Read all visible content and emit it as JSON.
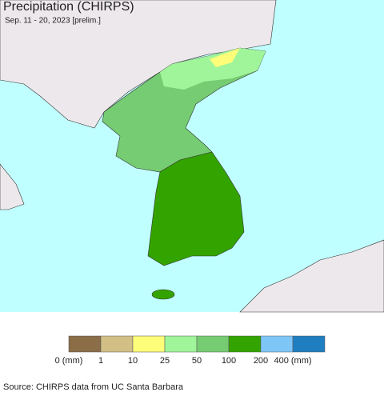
{
  "header": {
    "title": "Precipitation (CHIRPS)",
    "subtitle": "Sep. 11 - 20, 2023 [prelim.]"
  },
  "legend": {
    "colors": [
      "#8b6d48",
      "#d2bf86",
      "#fdfd7a",
      "#a0f59a",
      "#76cc72",
      "#33a300",
      "#7fc6f8",
      "#1e7ec0"
    ],
    "labels": [
      "0 (mm)",
      "1",
      "10",
      "25",
      "50",
      "100",
      "200",
      "400 (mm)"
    ]
  },
  "footer": {
    "source": "Source: CHIRPS data from UC Santa Barbara"
  }
}
